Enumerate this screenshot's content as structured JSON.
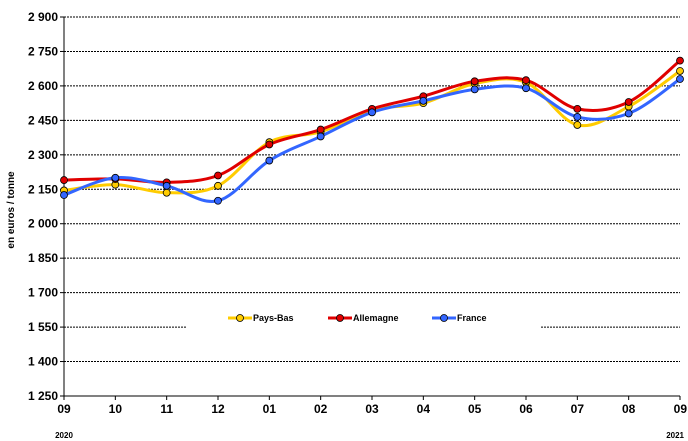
{
  "chart_data": {
    "type": "line",
    "title": "",
    "xlabel": "",
    "ylabel": "en euros / tonne",
    "ylim": [
      1250,
      2900
    ],
    "yticks": [
      "1 250",
      "1 400",
      "1 550",
      "1 700",
      "1 850",
      "2 000",
      "2 150",
      "2 300",
      "2 450",
      "2 600",
      "2 750",
      "2 900"
    ],
    "ytick_values": [
      1250,
      1400,
      1550,
      1700,
      1850,
      2000,
      2150,
      2300,
      2450,
      2600,
      2750,
      2900
    ],
    "categories": [
      "09",
      "10",
      "11",
      "12",
      "01",
      "02",
      "03",
      "04",
      "05",
      "06",
      "07",
      "08",
      "09"
    ],
    "year_labels": [
      {
        "text": "2020",
        "index": 0
      },
      {
        "text": "2021",
        "index": 12
      }
    ],
    "grid": true,
    "legend_position": "center",
    "series": [
      {
        "name": "Pays-Bas",
        "color": "#FFCC00",
        "values": [
          2145,
          2170,
          2135,
          2165,
          2355,
          2400,
          2495,
          2525,
          2610,
          2615,
          2430,
          2510,
          2665
        ]
      },
      {
        "name": "Allemagne",
        "color": "#E00000",
        "values": [
          2190,
          2195,
          2180,
          2210,
          2345,
          2410,
          2500,
          2555,
          2620,
          2625,
          2500,
          2530,
          2710
        ]
      },
      {
        "name": "France",
        "color": "#3366FF",
        "values": [
          2125,
          2200,
          2165,
          2100,
          2275,
          2380,
          2485,
          2535,
          2585,
          2590,
          2465,
          2480,
          2630
        ]
      }
    ]
  }
}
